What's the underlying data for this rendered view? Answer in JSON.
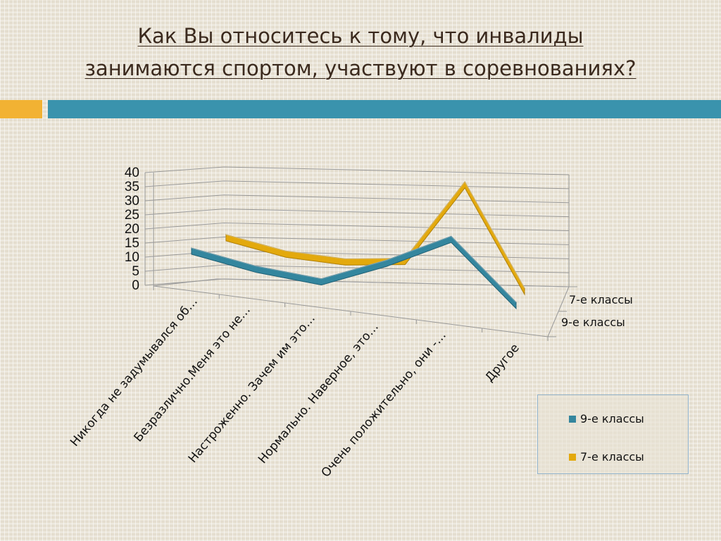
{
  "title_line1": "Как Вы относитесь к тому, что инвалиды",
  "title_line2": "занимаются спортом, участвуют в соревнованиях?",
  "colors": {
    "series_9": "#34869e",
    "series_7": "#e3a90d",
    "accent_orange": "#f2b233",
    "accent_teal": "#3a93ad"
  },
  "legend": {
    "items": [
      "9-е классы",
      "7-е классы"
    ]
  },
  "chart_data": {
    "type": "line",
    "categories": [
      "Никогда не задумывался об…",
      "Безразлично.Меня это не…",
      "Настроженно. Зачем им это…",
      "Нормально. Наверное, это…",
      "Очень положительно, они -…",
      "Другое"
    ],
    "y_ticks": [
      "0",
      "5",
      "10",
      "15",
      "20",
      "25",
      "30",
      "35",
      "40"
    ],
    "ylim": [
      0,
      40
    ],
    "depth_labels": [
      "7-е классы",
      "9-е классы"
    ],
    "series": [
      {
        "name": "9-е классы",
        "values": [
          8,
          5,
          4,
          14,
          26,
          6
        ]
      },
      {
        "name": "7-е классы",
        "values": [
          8,
          5,
          5,
          8,
          38,
          3
        ]
      }
    ],
    "legend_position": "right"
  }
}
